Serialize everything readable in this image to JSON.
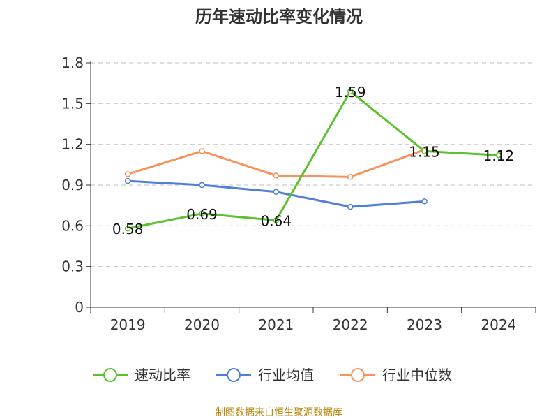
{
  "chart_data": {
    "type": "line",
    "title": "历年速动比率变化情况",
    "categories": [
      "2019",
      "2020",
      "2021",
      "2022",
      "2023",
      "2024"
    ],
    "ylim": [
      0,
      1.8
    ],
    "yticks": [
      "0",
      "0.3",
      "0.6",
      "0.9",
      "1.2",
      "1.5",
      "1.8"
    ],
    "grid": true,
    "legend_position": "bottom",
    "series": [
      {
        "name": "速动比率",
        "color": "#5cc12c",
        "values": [
          0.58,
          0.69,
          0.64,
          1.59,
          1.15,
          1.12
        ],
        "labels": [
          "0.58",
          "0.69",
          "0.64",
          "1.59",
          "1.15",
          "1.12"
        ]
      },
      {
        "name": "行业均值",
        "color": "#4f7fd9",
        "values": [
          0.93,
          0.9,
          0.85,
          0.74,
          0.78,
          null
        ]
      },
      {
        "name": "行业中位数",
        "color": "#f5935a",
        "values": [
          0.98,
          1.15,
          0.97,
          0.96,
          1.16,
          null
        ]
      }
    ],
    "source": "制图数据来自恒生聚源数据库"
  }
}
